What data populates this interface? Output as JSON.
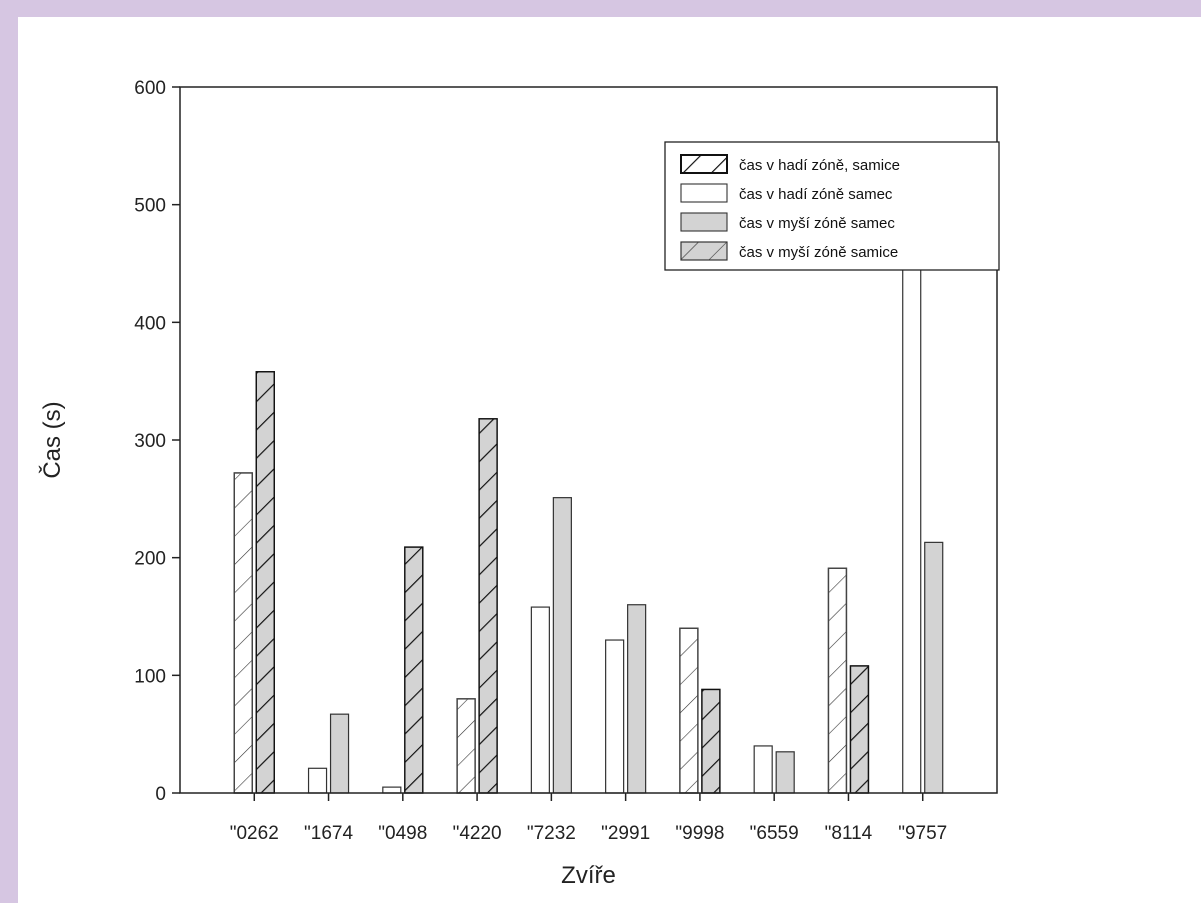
{
  "chart_data": {
    "type": "bar",
    "xlabel": "Zvíře",
    "ylabel": "Čas (s)",
    "ylim": [
      0,
      600
    ],
    "yticks": [
      0,
      100,
      200,
      300,
      400,
      500,
      600
    ],
    "categories": [
      "\"0262",
      "\"1674",
      "\"0498",
      "\"4220",
      "\"7232",
      "\"2991",
      "\"9998",
      "\"6559",
      "\"8114",
      "\"9757"
    ],
    "legend_position": "top-right",
    "series": [
      {
        "name": "čas v hadí zóně, samice",
        "fill": "#ffffff",
        "hatch": true,
        "hatch_color": "#111111",
        "values": [
          272,
          null,
          null,
          80,
          null,
          null,
          140,
          null,
          191,
          null
        ]
      },
      {
        "name": "čas v hadí zóně samec",
        "fill": "#ffffff",
        "hatch": false,
        "values": [
          null,
          21,
          5,
          null,
          158,
          130,
          null,
          40,
          null,
          517
        ]
      },
      {
        "name": "čas v myší zóně samec",
        "fill": "#d3d3d3",
        "hatch": false,
        "values": [
          null,
          67,
          null,
          null,
          251,
          160,
          null,
          35,
          null,
          213
        ]
      },
      {
        "name": "čas v myší zóně samice",
        "fill": "#d3d3d3",
        "hatch": true,
        "hatch_color": "#111111",
        "values": [
          358,
          null,
          209,
          318,
          null,
          null,
          88,
          null,
          108,
          null
        ]
      }
    ],
    "grid": false
  }
}
